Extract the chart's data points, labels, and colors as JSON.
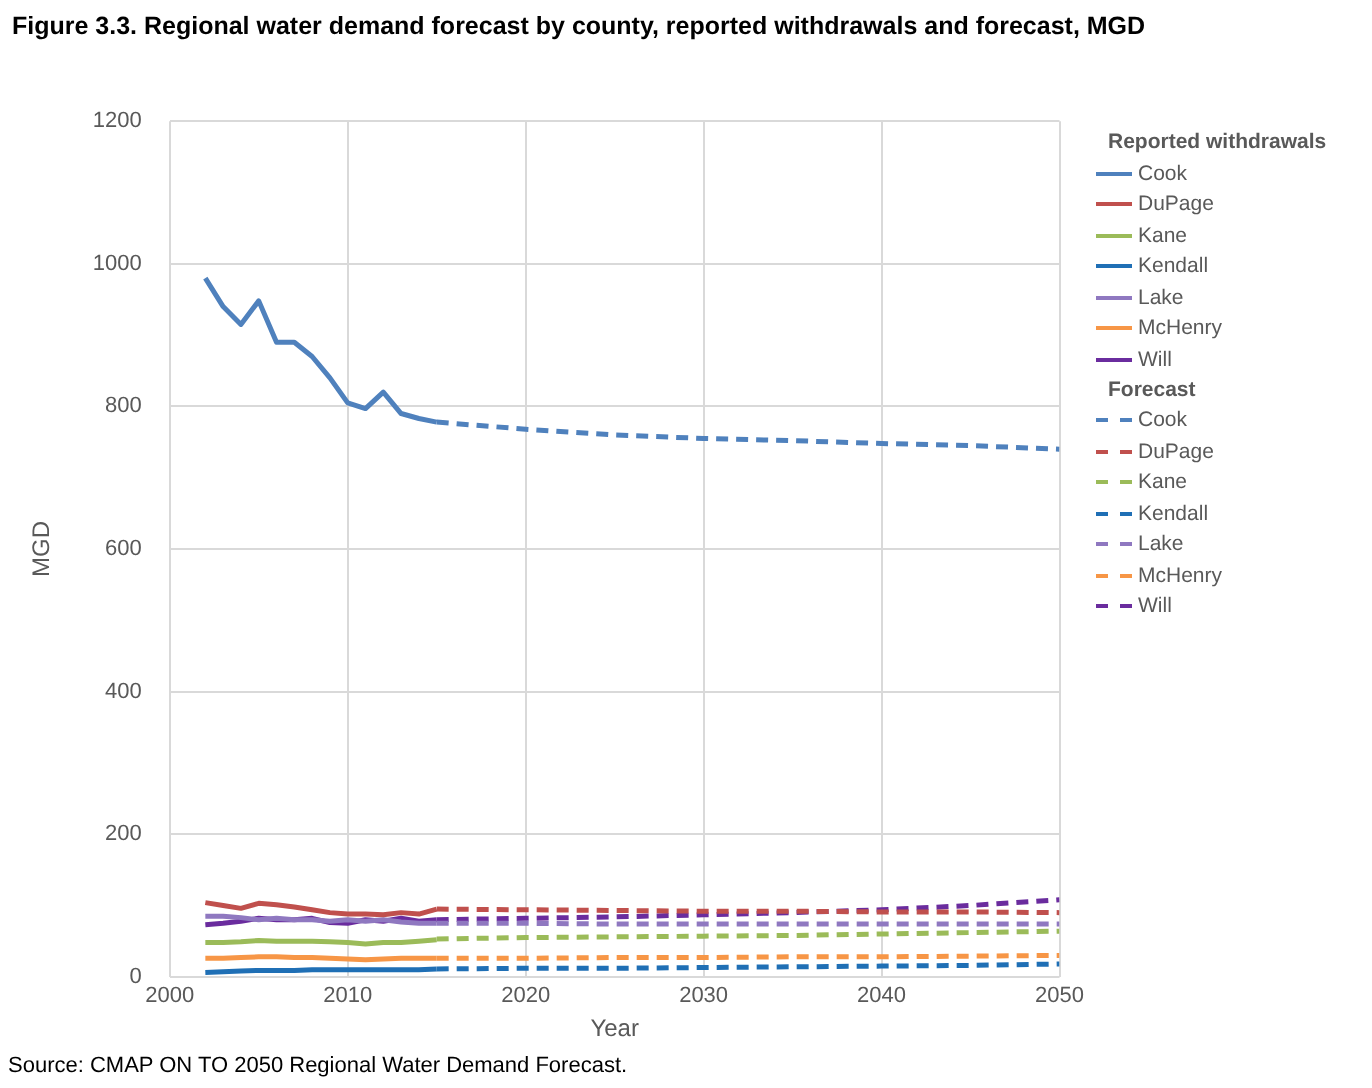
{
  "chart_data": {
    "type": "line",
    "title": "Figure 3.3. Regional water demand forecast by county, reported withdrawals and forecast, MGD",
    "xlabel": "Year",
    "ylabel": "MGD",
    "xlim": [
      2000,
      2050
    ],
    "xticks": [
      2000,
      2010,
      2020,
      2030,
      2040,
      2050
    ],
    "ylim": [
      0,
      1200
    ],
    "yticks": [
      0,
      200,
      400,
      600,
      800,
      1000,
      1200
    ],
    "grid": true,
    "legend": "right",
    "marker": "none",
    "legend_title": "Reported withdrawals",
    "annotations": [
      "Forecast",
      "Source: CMAP ON TO 2050 Regional Water Demand Forecast."
    ],
    "series": [
      {
        "name": "Cook",
        "color": "#4f81bd",
        "line_style": "solid",
        "x": [
          2002,
          2003,
          2004,
          2005,
          2006,
          2007,
          2008,
          2009,
          2010,
          2011,
          2012,
          2013,
          2014,
          2015
        ],
        "values": [
          980,
          940,
          915,
          948,
          890,
          890,
          870,
          840,
          805,
          797,
          820,
          790,
          783,
          778
        ]
      },
      {
        "name": "DuPage",
        "color": "#c0504d",
        "line_style": "solid",
        "x": [
          2002,
          2003,
          2004,
          2005,
          2006,
          2007,
          2008,
          2009,
          2010,
          2011,
          2012,
          2013,
          2014,
          2015
        ],
        "values": [
          104,
          100,
          96,
          103,
          101,
          98,
          94,
          90,
          88,
          88,
          87,
          90,
          88,
          95
        ]
      },
      {
        "name": "Kane",
        "color": "#9bbb59",
        "line_style": "solid",
        "x": [
          2002,
          2003,
          2004,
          2005,
          2006,
          2007,
          2008,
          2009,
          2010,
          2011,
          2012,
          2013,
          2014,
          2015
        ],
        "values": [
          48,
          48,
          49,
          51,
          50,
          50,
          50,
          49,
          48,
          46,
          48,
          48,
          50,
          52
        ]
      },
      {
        "name": "Kendall",
        "color": "#1f6fb5",
        "line_style": "solid",
        "x": [
          2002,
          2003,
          2004,
          2005,
          2006,
          2007,
          2008,
          2009,
          2010,
          2011,
          2012,
          2013,
          2014,
          2015
        ],
        "values": [
          6,
          7,
          8,
          9,
          9,
          9,
          10,
          10,
          10,
          10,
          10,
          10,
          10,
          11
        ]
      },
      {
        "name": "Lake",
        "color": "#8f78c0",
        "line_style": "solid",
        "x": [
          2002,
          2003,
          2004,
          2005,
          2006,
          2007,
          2008,
          2009,
          2010,
          2011,
          2012,
          2013,
          2014,
          2015
        ],
        "values": [
          85,
          85,
          83,
          80,
          82,
          80,
          80,
          78,
          80,
          78,
          80,
          77,
          75,
          75
        ]
      },
      {
        "name": "McHenry",
        "color": "#f79646",
        "line_style": "solid",
        "x": [
          2002,
          2003,
          2004,
          2005,
          2006,
          2007,
          2008,
          2009,
          2010,
          2011,
          2012,
          2013,
          2014,
          2015
        ],
        "values": [
          26,
          26,
          27,
          28,
          28,
          27,
          27,
          26,
          25,
          24,
          25,
          26,
          26,
          26
        ]
      },
      {
        "name": "Will",
        "color": "#6a2c9e",
        "line_style": "solid",
        "x": [
          2002,
          2003,
          2004,
          2005,
          2006,
          2007,
          2008,
          2009,
          2010,
          2011,
          2012,
          2013,
          2014,
          2015
        ],
        "values": [
          73,
          75,
          78,
          82,
          80,
          80,
          82,
          76,
          75,
          80,
          78,
          82,
          78,
          80
        ]
      },
      {
        "name": "Cook",
        "color": "#4f81bd",
        "line_style": "dashed",
        "x": [
          2015,
          2020,
          2025,
          2030,
          2035,
          2040,
          2045,
          2050
        ],
        "values": [
          778,
          768,
          760,
          755,
          752,
          748,
          745,
          740
        ]
      },
      {
        "name": "DuPage",
        "color": "#c0504d",
        "line_style": "dashed",
        "x": [
          2015,
          2020,
          2025,
          2030,
          2035,
          2040,
          2045,
          2050
        ],
        "values": [
          95,
          94,
          93,
          92,
          92,
          91,
          91,
          90
        ]
      },
      {
        "name": "Kane",
        "color": "#9bbb59",
        "line_style": "dashed",
        "x": [
          2015,
          2020,
          2025,
          2030,
          2035,
          2040,
          2045,
          2050
        ],
        "values": [
          53,
          55,
          56,
          57,
          58,
          60,
          62,
          64
        ]
      },
      {
        "name": "Kendall",
        "color": "#1f6fb5",
        "line_style": "dashed",
        "x": [
          2015,
          2020,
          2025,
          2030,
          2035,
          2040,
          2045,
          2050
        ],
        "values": [
          11,
          12,
          12,
          13,
          14,
          15,
          16,
          18
        ]
      },
      {
        "name": "Lake",
        "color": "#8f78c0",
        "line_style": "dashed",
        "x": [
          2015,
          2020,
          2025,
          2030,
          2035,
          2040,
          2045,
          2050
        ],
        "values": [
          75,
          75,
          74,
          74,
          74,
          74,
          74,
          74
        ]
      },
      {
        "name": "McHenry",
        "color": "#f79646",
        "line_style": "dashed",
        "x": [
          2015,
          2020,
          2025,
          2030,
          2035,
          2040,
          2045,
          2050
        ],
        "values": [
          26,
          26,
          27,
          27,
          28,
          28,
          29,
          30
        ]
      },
      {
        "name": "Will",
        "color": "#6a2c9e",
        "line_style": "dashed",
        "x": [
          2015,
          2020,
          2025,
          2030,
          2035,
          2040,
          2045,
          2050
        ],
        "values": [
          80,
          82,
          84,
          87,
          90,
          94,
          100,
          108
        ]
      }
    ]
  }
}
